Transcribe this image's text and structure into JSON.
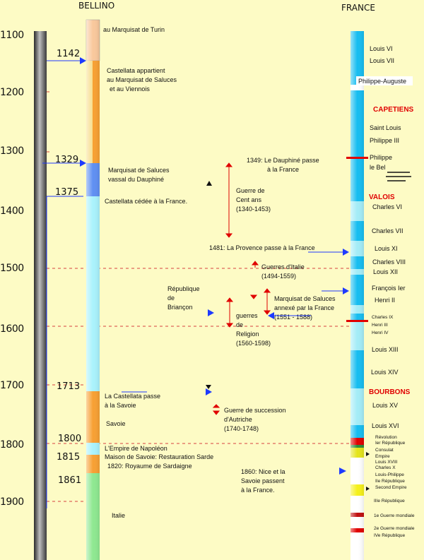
{
  "headers": {
    "left": "BELLINO",
    "right": "FRANCE"
  },
  "centuries": [
    "1100",
    "1200",
    "1300",
    "1400",
    "1500",
    "1600",
    "1700",
    "1800",
    "1900"
  ],
  "markers": [
    "1142",
    "1329",
    "1375",
    "1713",
    "1800",
    "1815",
    "1861"
  ],
  "bellino": [
    [
      "au Marquisat de Turin"
    ],
    [
      "Castellata appartient",
      "au Marquisat de Saluces",
      "et au Viennois"
    ],
    [
      "Marquisat de Saluces",
      "vassal du Dauphiné"
    ],
    [
      "Castellata cédée à la France."
    ],
    [
      "La Castellata passe",
      "à la Savoie"
    ],
    [
      "Savoie"
    ],
    [
      "L'Empire de Napoléon"
    ],
    [
      "Maison de Savoie: Restauration Sarde"
    ],
    [
      "1820: Royaume de Sardaigne"
    ],
    [
      "Italie"
    ]
  ],
  "france_rulers": [
    "Louis VI",
    "Louis VII",
    "Philippe-Auguste",
    "Saint Louis",
    "Philippe III",
    "Philippe",
    "le Bel",
    "Charles VI",
    "Charles VII",
    "Louis XI",
    "Charles VIII",
    "Louis XII",
    "François Ier",
    "Henri II",
    "Charles IX",
    "Henri III",
    "Henri IV",
    "Louis XIII",
    "Louis XIV",
    "Louis XV",
    "Louis XVI"
  ],
  "france_small": [
    "Révolution",
    "Ier République",
    "Consulat",
    "Empire",
    "Louis XVIII",
    "Charles X",
    "Louis-Philippe",
    "IIe République",
    "Second Empire",
    "IIIe République",
    "1e Guerre mondiale",
    "2e Guerre mondiale",
    "IVe République"
  ],
  "dynasties": [
    "CAPETIENS",
    "VALOIS",
    "BOURBONS"
  ],
  "events": [
    [
      "1349: Le Dauphiné passe",
      "à la France"
    ],
    [
      "Guerre de",
      "Cent ans",
      "(1340-1453)"
    ],
    [
      "1481: La Provence passe à la France"
    ],
    [
      "Guerres d'Italie",
      "(1494-1559)"
    ],
    [
      "République",
      "de",
      "Briançon"
    ],
    [
      "Marquisat de Saluces",
      "annexé par la France",
      "(1551 - 1588)"
    ],
    [
      "guerres",
      "de",
      "Religion",
      "(1560-1598)"
    ],
    [
      "Guerre de succession",
      "d'Autriche",
      "(1740-1748)"
    ],
    [
      "1860: Nice et la",
      "Savoie passent",
      "à la France."
    ]
  ],
  "colors": {
    "background": "#fdfbc5",
    "turin": "#f9c89c",
    "saluces": "#f7dc8a",
    "orange": "#f7a033",
    "dauphine": "#5f8ff2",
    "cyan": "#a9f2fc",
    "green": "#8ee890",
    "france_blue": "#16bdf0",
    "france_light": "#a3ecf7",
    "red": "#e00000",
    "arrow_blue": "#1e3aff"
  }
}
